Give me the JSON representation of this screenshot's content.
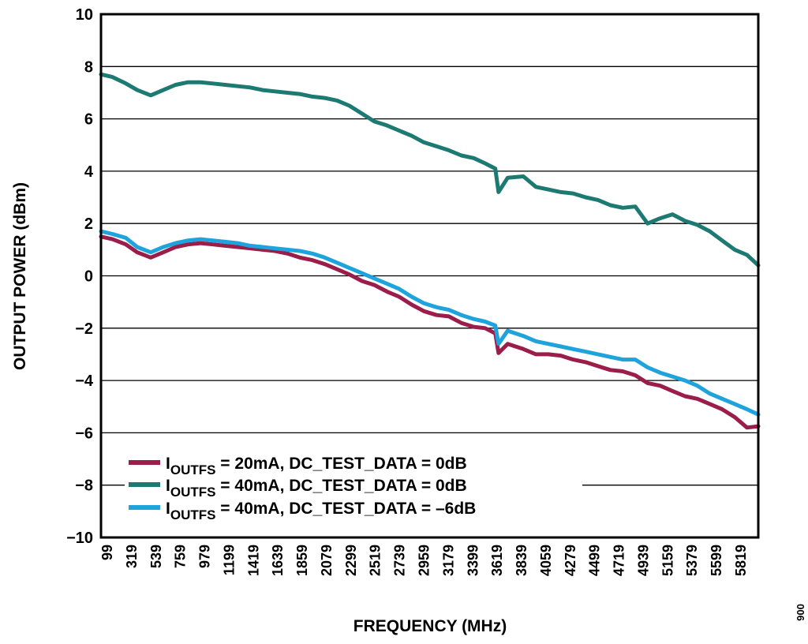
{
  "chart_data": {
    "type": "line",
    "xlabel": "FREQUENCY (MHz)",
    "ylabel": "OUTPUT POWER (dBm)",
    "ylim": [
      -10,
      10
    ],
    "xlim": [
      99,
      5919
    ],
    "x_ticks": [
      "99",
      "319",
      "539",
      "759",
      "979",
      "1199",
      "1419",
      "1639",
      "1859",
      "2079",
      "2299",
      "2519",
      "2739",
      "2959",
      "3179",
      "3399",
      "3619",
      "3839",
      "4059",
      "4279",
      "4499",
      "4719",
      "4939",
      "5159",
      "5379",
      "5599",
      "5819"
    ],
    "y_ticks": [
      "10",
      "8",
      "6",
      "4",
      "2",
      "0",
      "−2",
      "−4",
      "−6",
      "−8",
      "−10"
    ],
    "grid": "horizontal",
    "legend_position": "bottom-left",
    "corner_text": "006",
    "series": [
      {
        "name": "IOUTFS = 20mA, DC_TEST_DATA = 0dB",
        "legend": {
          "main": "I",
          "sub": "OUTFS",
          "rest": " = 20mA, DC_TEST_DATA = 0dB"
        },
        "color": "#9b1d4a",
        "x": [
          99,
          200,
          319,
          420,
          539,
          650,
          759,
          870,
          979,
          1090,
          1199,
          1310,
          1419,
          1530,
          1639,
          1750,
          1859,
          1970,
          2079,
          2190,
          2299,
          2410,
          2519,
          2630,
          2739,
          2850,
          2959,
          3070,
          3179,
          3290,
          3399,
          3500,
          3590,
          3619,
          3700,
          3839,
          3950,
          4059,
          4170,
          4279,
          4390,
          4499,
          4610,
          4719,
          4830,
          4939,
          5050,
          5159,
          5270,
          5379,
          5490,
          5599,
          5710,
          5819,
          5919
        ],
        "y": [
          1.5,
          1.4,
          1.2,
          0.9,
          0.7,
          0.9,
          1.1,
          1.2,
          1.25,
          1.2,
          1.15,
          1.1,
          1.05,
          1.0,
          0.95,
          0.85,
          0.7,
          0.6,
          0.45,
          0.25,
          0.05,
          -0.2,
          -0.35,
          -0.6,
          -0.8,
          -1.1,
          -1.35,
          -1.5,
          -1.55,
          -1.8,
          -1.95,
          -2.0,
          -2.2,
          -2.95,
          -2.6,
          -2.8,
          -3.0,
          -3.0,
          -3.05,
          -3.2,
          -3.3,
          -3.45,
          -3.6,
          -3.65,
          -3.8,
          -4.1,
          -4.2,
          -4.4,
          -4.6,
          -4.7,
          -4.9,
          -5.1,
          -5.4,
          -5.8,
          -5.75
        ]
      },
      {
        "name": "IOUTFS = 40mA, DC_TEST_DATA = 0dB",
        "legend": {
          "main": "I",
          "sub": "OUTFS",
          "rest": " = 40mA, DC_TEST_DATA = 0dB"
        },
        "color": "#1d7a72",
        "x": [
          99,
          200,
          319,
          420,
          539,
          650,
          759,
          870,
          979,
          1090,
          1199,
          1310,
          1419,
          1530,
          1639,
          1750,
          1859,
          1970,
          2079,
          2190,
          2299,
          2410,
          2519,
          2630,
          2739,
          2850,
          2959,
          3070,
          3179,
          3290,
          3399,
          3500,
          3590,
          3619,
          3700,
          3839,
          3950,
          4059,
          4170,
          4279,
          4390,
          4499,
          4610,
          4719,
          4830,
          4939,
          5050,
          5159,
          5270,
          5379,
          5490,
          5599,
          5710,
          5819,
          5919
        ],
        "y": [
          7.7,
          7.6,
          7.35,
          7.1,
          6.9,
          7.1,
          7.3,
          7.4,
          7.4,
          7.35,
          7.3,
          7.25,
          7.2,
          7.1,
          7.05,
          7.0,
          6.95,
          6.85,
          6.8,
          6.7,
          6.5,
          6.2,
          5.9,
          5.75,
          5.55,
          5.35,
          5.1,
          4.95,
          4.8,
          4.6,
          4.5,
          4.3,
          4.1,
          3.2,
          3.75,
          3.8,
          3.4,
          3.3,
          3.2,
          3.15,
          3.0,
          2.9,
          2.7,
          2.6,
          2.65,
          2.0,
          2.2,
          2.35,
          2.1,
          1.95,
          1.7,
          1.35,
          1.0,
          0.8,
          0.4
        ]
      },
      {
        "name": "IOUTFS = 40mA, DC_TEST_DATA = −6dB",
        "legend": {
          "main": "I",
          "sub": "OUTFS",
          "rest": " = 40mA, DC_TEST_DATA = –6dB"
        },
        "color": "#1ea3dc",
        "x": [
          99,
          200,
          319,
          420,
          539,
          650,
          759,
          870,
          979,
          1090,
          1199,
          1310,
          1419,
          1530,
          1639,
          1750,
          1859,
          1970,
          2079,
          2190,
          2299,
          2410,
          2519,
          2630,
          2739,
          2850,
          2959,
          3070,
          3179,
          3290,
          3399,
          3500,
          3590,
          3619,
          3700,
          3839,
          3950,
          4059,
          4170,
          4279,
          4390,
          4499,
          4610,
          4719,
          4830,
          4939,
          5050,
          5159,
          5270,
          5379,
          5490,
          5599,
          5710,
          5819,
          5919
        ],
        "y": [
          1.7,
          1.6,
          1.45,
          1.1,
          0.9,
          1.1,
          1.25,
          1.35,
          1.4,
          1.35,
          1.3,
          1.25,
          1.15,
          1.1,
          1.05,
          1.0,
          0.95,
          0.85,
          0.7,
          0.5,
          0.3,
          0.1,
          -0.1,
          -0.3,
          -0.5,
          -0.8,
          -1.05,
          -1.2,
          -1.3,
          -1.5,
          -1.65,
          -1.75,
          -1.9,
          -2.6,
          -2.1,
          -2.3,
          -2.5,
          -2.6,
          -2.7,
          -2.8,
          -2.9,
          -3.0,
          -3.1,
          -3.2,
          -3.2,
          -3.5,
          -3.7,
          -3.85,
          -4.0,
          -4.2,
          -4.5,
          -4.7,
          -4.9,
          -5.1,
          -5.3
        ]
      }
    ]
  }
}
